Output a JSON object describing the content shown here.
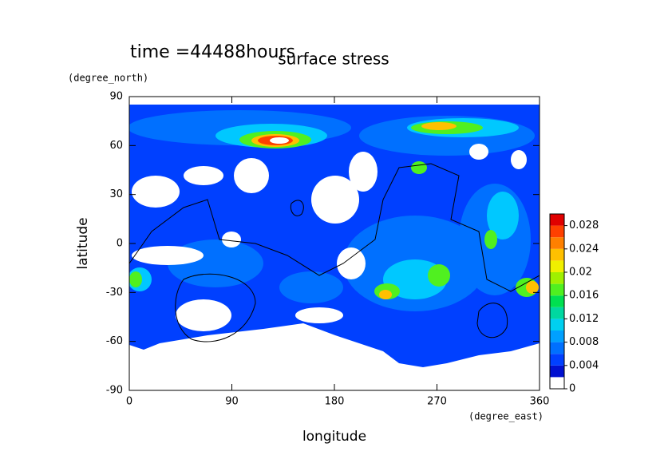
{
  "chart_data": {
    "type": "contour",
    "title": "surface stress",
    "annotation": "time =44488hours",
    "x_label": "longitude",
    "y_label": "latitude",
    "x_unit": "(degree_east)",
    "y_unit": "(degree_north)",
    "xlim": [
      0,
      360
    ],
    "xticks": [
      0,
      90,
      180,
      270,
      360
    ],
    "ylim": [
      -90,
      90
    ],
    "yticks": [
      -90,
      -60,
      -30,
      0,
      30,
      60,
      90
    ],
    "colorbar": {
      "lim": [
        0,
        0.03
      ],
      "ticks": [
        0,
        0.004,
        0.008,
        0.012,
        0.016,
        0.02,
        0.024,
        0.028
      ],
      "levels": [
        0,
        0.002,
        0.004,
        0.006,
        0.008,
        0.01,
        0.012,
        0.014,
        0.016,
        0.018,
        0.02,
        0.022,
        0.024,
        0.026,
        0.028,
        0.03
      ],
      "colors": [
        "#ffffff",
        "#0010d0",
        "#0040ff",
        "#0070ff",
        "#00a0ff",
        "#00d0f0",
        "#00d8a0",
        "#00e050",
        "#50f020",
        "#a0f000",
        "#f0f000",
        "#ffc000",
        "#ff8000",
        "#ff4000",
        "#e00000"
      ]
    }
  }
}
